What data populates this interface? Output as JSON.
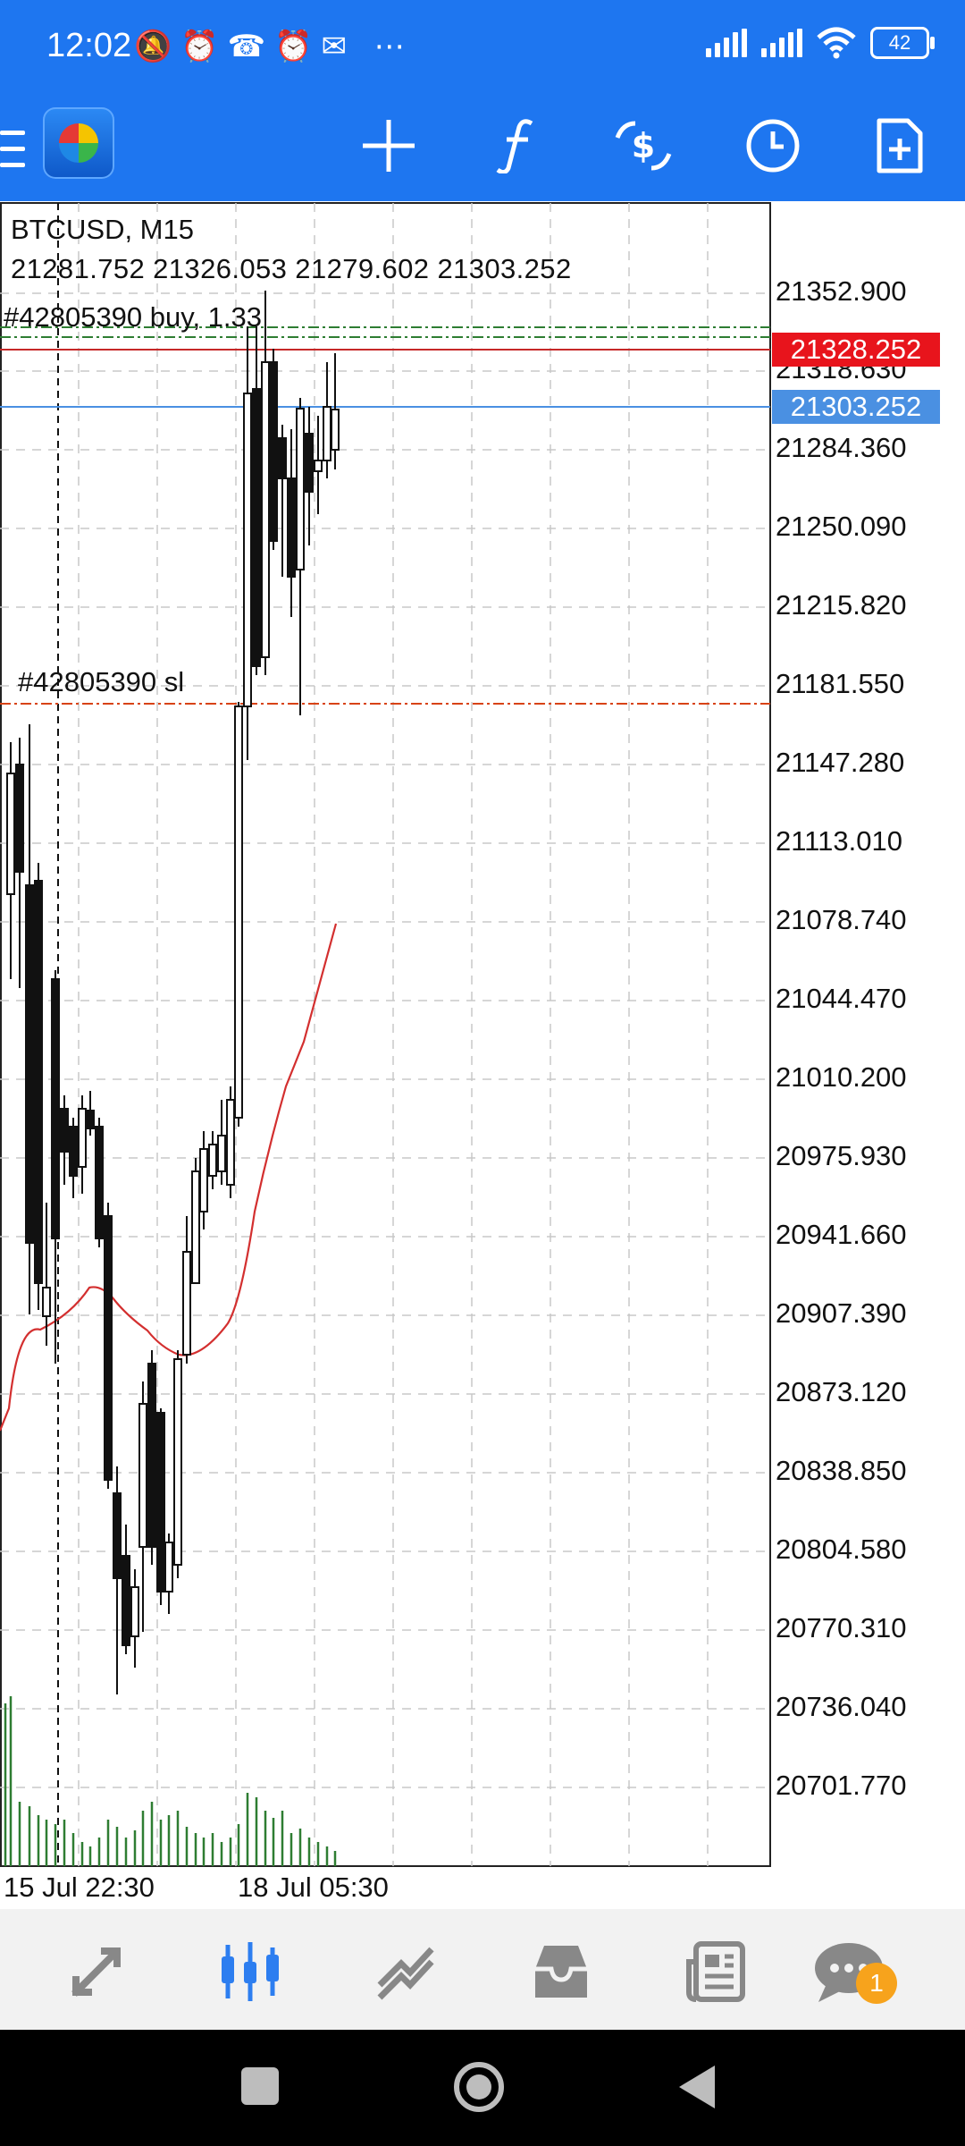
{
  "status_bar": {
    "time": "12:02",
    "left_icons": [
      "mute-icon",
      "alarm-icon",
      "missed-call-icon",
      "alarm-icon",
      "outlook-icon",
      "more-dots-icon"
    ],
    "battery": "42"
  },
  "toolbar": {
    "icons": [
      "menu-icon",
      "app-logo",
      "crosshair-icon",
      "function-icon",
      "trade-icon",
      "history-clock-icon",
      "new-document-icon"
    ]
  },
  "chart": {
    "symbol_timeframe": "BTCUSD, M15",
    "ohlc": "21281.752 21326.053 21279.602 21303.252",
    "order_label": "#42805390 buy, 1.33",
    "sl_label": "#42805390 sl",
    "price_axis": [
      "21352.900",
      "21318.630",
      "21284.360",
      "21250.090",
      "21215.820",
      "21181.550",
      "21147.280",
      "21113.010",
      "21078.740",
      "21044.470",
      "21010.200",
      "20975.930",
      "20941.660",
      "20907.390",
      "20873.120",
      "20838.850",
      "20804.580",
      "20770.310",
      "20736.040",
      "20701.770"
    ],
    "order_price_tag": "21328.252",
    "bid_price_tag": "21303.252",
    "dates": [
      "15 Jul 22:30",
      "18 Jul 05:30"
    ],
    "colors": {
      "order_tag": "#e8141c",
      "bid_tag": "#4a90e2",
      "ma": "#d32f2f",
      "volume": "#2e7d32"
    }
  },
  "bottom_nav": {
    "items": [
      "quotes-icon",
      "chart-icon",
      "trade-icon",
      "history-icon",
      "news-icon",
      "messages-icon"
    ],
    "badge": "1"
  }
}
